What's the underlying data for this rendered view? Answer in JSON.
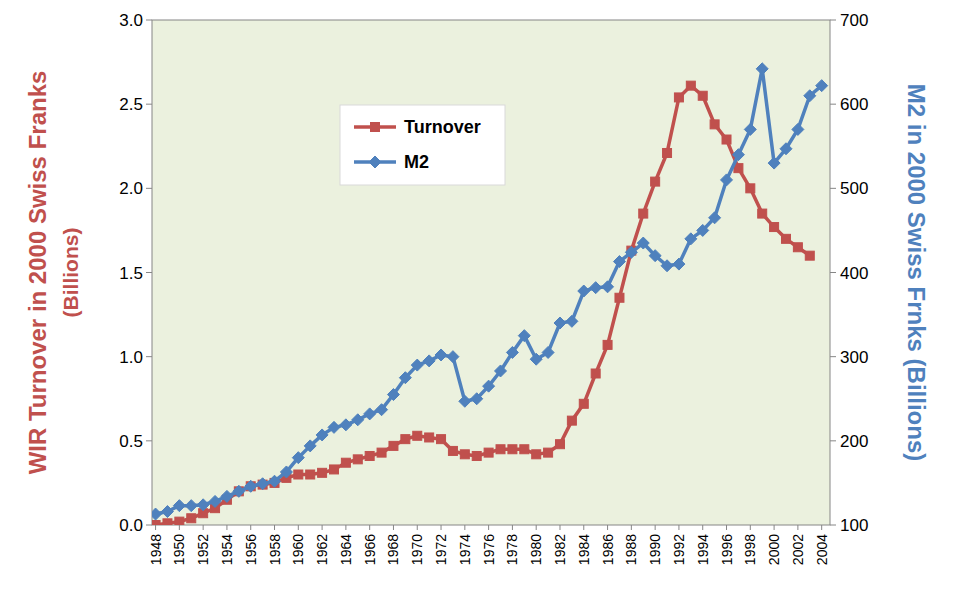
{
  "chart_data": {
    "type": "line",
    "ylabel": "WIR Turnover in  2000 Swiss Franks\n(Billions)",
    "y2label": "M2 in 2000 Swiss Frnks (Billions)",
    "x": [
      1948,
      1949,
      1950,
      1951,
      1952,
      1953,
      1954,
      1955,
      1956,
      1957,
      1958,
      1959,
      1960,
      1961,
      1962,
      1963,
      1964,
      1965,
      1966,
      1967,
      1968,
      1969,
      1970,
      1971,
      1972,
      1973,
      1974,
      1975,
      1976,
      1977,
      1978,
      1979,
      1980,
      1981,
      1982,
      1983,
      1984,
      1985,
      1986,
      1987,
      1988,
      1989,
      1990,
      1991,
      1992,
      1993,
      1994,
      1995,
      1996,
      1997,
      1998,
      1999,
      2000,
      2001,
      2002,
      2003,
      2004
    ],
    "series": [
      {
        "name": "Turnover",
        "color": "#c0504d",
        "marker": "square",
        "axis": "y",
        "values": [
          0.0,
          0.01,
          0.02,
          0.04,
          0.07,
          0.1,
          0.15,
          0.2,
          0.23,
          0.24,
          0.25,
          0.28,
          0.3,
          0.3,
          0.31,
          0.33,
          0.37,
          0.39,
          0.41,
          0.43,
          0.47,
          0.51,
          0.53,
          0.52,
          0.51,
          0.44,
          0.42,
          0.41,
          0.43,
          0.45,
          0.45,
          0.45,
          0.42,
          0.43,
          0.48,
          0.62,
          0.72,
          0.9,
          1.07,
          1.35,
          1.63,
          1.85,
          2.04,
          2.21,
          2.54,
          2.61,
          2.55,
          2.38,
          2.29,
          2.12,
          2.0,
          1.85,
          1.77,
          1.7,
          1.65,
          1.6,
          null
        ]
      },
      {
        "name": "M2",
        "color": "#4f81bd",
        "marker": "diamond",
        "axis": "y2",
        "values": [
          113,
          116,
          123,
          123,
          124,
          128,
          134,
          140,
          146,
          149,
          152,
          163,
          180,
          194,
          207,
          216,
          219,
          225,
          232,
          237,
          255,
          275,
          290,
          295,
          302,
          300,
          247,
          250,
          265,
          283,
          305,
          325,
          297,
          305,
          340,
          342,
          378,
          382,
          383,
          413,
          424,
          435,
          420,
          408,
          410,
          440,
          450,
          465,
          510,
          540,
          570,
          642,
          530,
          547,
          570,
          610,
          622
        ]
      }
    ],
    "xlim": [
      1947.7,
      2004.7
    ],
    "xticks": [
      1948,
      1950,
      1952,
      1954,
      1956,
      1958,
      1960,
      1962,
      1964,
      1966,
      1968,
      1970,
      1972,
      1974,
      1976,
      1978,
      1980,
      1982,
      1984,
      1986,
      1988,
      1990,
      1992,
      1994,
      1996,
      1998,
      2000,
      2002,
      2004
    ],
    "ylim": [
      0,
      3
    ],
    "yticks": [
      {
        "value": 0,
        "label": "0.0"
      },
      0.5,
      {
        "value": 1,
        "label": "1.0"
      },
      1.5,
      {
        "value": 2,
        "label": "2.0"
      },
      2.5,
      {
        "value": 3,
        "label": "3.0"
      }
    ],
    "y2lim": [
      100,
      700
    ],
    "y2ticks": [
      100,
      200,
      300,
      400,
      500,
      600,
      700
    ],
    "grid": false,
    "legend": "top-left"
  }
}
